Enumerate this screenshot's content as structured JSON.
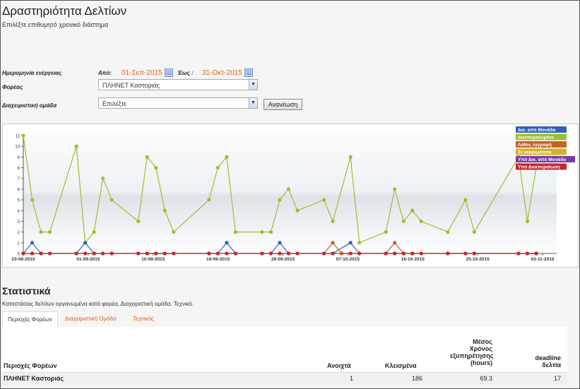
{
  "page": {
    "title": "Δραστηριότητα Δελτίων",
    "subtitle": "Επιλέξτε επιθυμητό χρονικό διάστημα"
  },
  "filters": {
    "date_label": "Ημερομηνία ενέργειας",
    "from_label": "Από:",
    "from_value": "01-Σεπ-2015",
    "to_label": "Έως :",
    "to_value": "31-Οκτ-2015",
    "agency_label": "Φορέας",
    "agency_value": "ΠΛΗΝΕΤ Καστοριάς",
    "group_label": "Διαχειριστική ομάδα",
    "group_value": "Επιλέξτε",
    "refresh_button": "Ανανέωση"
  },
  "chart_data": {
    "type": "line",
    "ylim": [
      0,
      11
    ],
    "yticks": [
      "0",
      "1",
      "2",
      "3",
      "4",
      "5",
      "6",
      "7",
      "8",
      "9",
      "10",
      "11"
    ],
    "x_tick_labels": [
      "23-08-2015",
      "01-09-2015",
      "10-09-2015",
      "19-09-2015",
      "28-09-2015",
      "07-10-2015",
      "16-10-2015",
      "25-10-2015",
      "03-11-2015"
    ],
    "x_tick_days": [
      0,
      9,
      18,
      27,
      36,
      45,
      54,
      63,
      72
    ],
    "x_days": [
      0,
      1,
      2,
      3,
      6,
      7,
      8,
      9,
      10,
      13,
      14,
      15,
      16,
      17,
      20,
      21,
      22,
      23,
      25,
      26,
      27,
      28,
      29,
      30,
      32,
      33,
      34,
      36,
      37,
      38,
      40,
      42,
      43,
      45,
      48,
      49,
      50,
      51,
      52,
      53,
      56,
      57,
      58
    ],
    "x_dates": [
      "23-08-2015",
      "24-08-2015",
      "25-08-2015",
      "26-08-2015",
      "29-08-2015",
      "30-08-2015",
      "31-08-2015",
      "01-09-2015",
      "02-09-2015",
      "05-09-2015",
      "06-09-2015",
      "07-09-2015",
      "08-09-2015",
      "09-09-2015",
      "12-09-2015",
      "13-09-2015",
      "14-09-2015",
      "15-09-2015",
      "17-09-2015",
      "18-09-2015",
      "19-09-2015",
      "20-09-2015",
      "21-09-2015",
      "22-09-2015",
      "24-09-2015",
      "25-09-2015",
      "26-09-2015",
      "28-09-2015",
      "29-09-2015",
      "30-09-2015",
      "02-10-2015",
      "04-10-2015",
      "05-10-2015",
      "07-10-2015",
      "10-10-2015",
      "11-10-2015",
      "12-10-2015",
      "13-10-2015",
      "14-10-2015",
      "15-10-2015",
      "18-10-2015",
      "19-10-2015",
      "20-10-2015"
    ],
    "series_order_note": "",
    "series": [
      {
        "name": "Διεκπεραιωμένο",
        "color": "#9ebd2f",
        "points": [
          [
            0,
            11
          ],
          [
            1,
            5
          ],
          [
            2,
            2
          ],
          [
            3,
            2
          ],
          [
            6,
            10
          ],
          [
            7,
            1
          ],
          [
            8,
            2
          ],
          [
            9,
            7
          ],
          [
            10,
            5
          ],
          [
            13,
            3
          ],
          [
            14,
            9
          ],
          [
            15,
            8
          ],
          [
            16,
            4
          ],
          [
            17,
            2
          ],
          [
            21,
            5
          ],
          [
            22,
            8
          ],
          [
            23,
            9
          ],
          [
            24,
            2
          ],
          [
            27,
            2
          ],
          [
            28,
            2
          ],
          [
            29,
            5
          ],
          [
            30,
            6
          ],
          [
            31,
            4
          ],
          [
            34,
            5
          ],
          [
            35,
            3
          ],
          [
            37,
            9
          ],
          [
            38,
            1
          ],
          [
            41,
            2
          ],
          [
            42,
            6
          ],
          [
            43,
            3
          ],
          [
            44,
            4
          ],
          [
            45,
            3
          ],
          [
            48,
            2
          ],
          [
            50,
            5
          ],
          [
            51,
            2
          ],
          [
            56,
            9
          ],
          [
            57,
            3
          ],
          [
            58,
            8
          ]
        ]
      },
      {
        "name": "Δικ. από Μονάδα",
        "color": "#2f62b4",
        "points": [
          [
            0,
            0
          ],
          [
            1,
            1
          ],
          [
            2,
            0
          ],
          [
            3,
            0
          ],
          [
            6,
            0
          ],
          [
            7,
            1
          ],
          [
            8,
            0
          ],
          [
            9,
            0
          ],
          [
            10,
            0
          ],
          [
            13,
            0
          ],
          [
            14,
            0
          ],
          [
            15,
            0
          ],
          [
            16,
            0
          ],
          [
            17,
            0
          ],
          [
            21,
            0
          ],
          [
            22,
            0
          ],
          [
            23,
            1
          ],
          [
            24,
            0
          ],
          [
            27,
            0
          ],
          [
            28,
            0
          ],
          [
            29,
            1
          ],
          [
            30,
            0
          ],
          [
            31,
            0
          ],
          [
            34,
            0
          ],
          [
            35,
            0
          ],
          [
            37,
            1
          ],
          [
            38,
            0
          ],
          [
            41,
            0
          ],
          [
            42,
            0
          ],
          [
            43,
            0
          ],
          [
            44,
            0
          ],
          [
            45,
            0
          ],
          [
            48,
            0
          ],
          [
            50,
            0
          ],
          [
            51,
            0
          ],
          [
            56,
            0
          ],
          [
            57,
            0
          ],
          [
            58,
            0
          ]
        ]
      },
      {
        "name": "Λάθος εγγραφή",
        "color": "#c4622a",
        "points": [
          [
            0,
            0
          ],
          [
            34,
            0
          ],
          [
            35,
            1
          ],
          [
            36,
            0
          ],
          [
            41,
            0
          ],
          [
            42,
            1
          ],
          [
            43,
            0
          ],
          [
            58,
            0
          ]
        ]
      },
      {
        "name": "Σε εκκρεμότητα",
        "color": "#d6b228",
        "points": []
      },
      {
        "name": "Υπό Δικ. από Μονάδα",
        "color": "#7a3aa8",
        "points": []
      },
      {
        "name": "Υπό Διεκπεραίωση",
        "color": "#c0282e",
        "points": [
          [
            0,
            0
          ],
          [
            1,
            0
          ],
          [
            2,
            0
          ],
          [
            3,
            0
          ],
          [
            6,
            0
          ],
          [
            7,
            0
          ],
          [
            8,
            0
          ],
          [
            9,
            0
          ],
          [
            10,
            0
          ],
          [
            13,
            0
          ],
          [
            14,
            0
          ],
          [
            15,
            0
          ],
          [
            16,
            0
          ],
          [
            17,
            0
          ],
          [
            21,
            0
          ],
          [
            22,
            0
          ],
          [
            23,
            0
          ],
          [
            24,
            0
          ],
          [
            27,
            0
          ],
          [
            28,
            0
          ],
          [
            29,
            0
          ],
          [
            30,
            0
          ],
          [
            31,
            0
          ],
          [
            34,
            0
          ],
          [
            35,
            0
          ],
          [
            37,
            0
          ],
          [
            38,
            0
          ],
          [
            41,
            0
          ],
          [
            42,
            0
          ],
          [
            43,
            0
          ],
          [
            44,
            0
          ],
          [
            45,
            0
          ],
          [
            48,
            0
          ],
          [
            50,
            0
          ],
          [
            51,
            0
          ],
          [
            56,
            0
          ],
          [
            57,
            0
          ],
          [
            58,
            0
          ]
        ]
      }
    ],
    "legend_placement": "top-right",
    "grid": false
  },
  "legend": [
    {
      "label": "Δικ. από Μονάδα",
      "color": "#2f62b4"
    },
    {
      "label": "Διεκπεραιωμένο",
      "color": "#9ebd2f"
    },
    {
      "label": "Λάθος εγγραφή",
      "color": "#c4622a"
    },
    {
      "label": "Σε εκκρεμότητα",
      "color": "#d6b228"
    },
    {
      "label": "Υπό Δικ. από Μονάδα",
      "color": "#7a3aa8"
    },
    {
      "label": "Υπό Διεκπεραίωση",
      "color": "#c0282e"
    }
  ],
  "stats": {
    "title": "Στατιστικά",
    "subtitle": "Καταστάσεις δελτίων οργανωμένα κατά φορέα, Διαχειριστική ομάδα, Τεχνικό.",
    "tabs": [
      "Περιοχές Φορέων",
      "Διαχειριστική Ομάδα",
      "Τεχνικός"
    ],
    "columns": {
      "area": "Περιοχές Φορέων",
      "open": "Ανοιχτά",
      "closed": "Κλεισμένα",
      "avg_time_lines": [
        "Μέσος",
        "Χρόνος",
        "εξυπηρέτησης",
        "(hours)"
      ],
      "deadline_lines": [
        "deadline",
        "δελτία"
      ]
    },
    "rows": [
      {
        "area": "ΠΛΗΝΕΤ Καστοριάς",
        "open": "1",
        "closed": "186",
        "avg_time": "69.3",
        "deadline": "17"
      }
    ]
  }
}
